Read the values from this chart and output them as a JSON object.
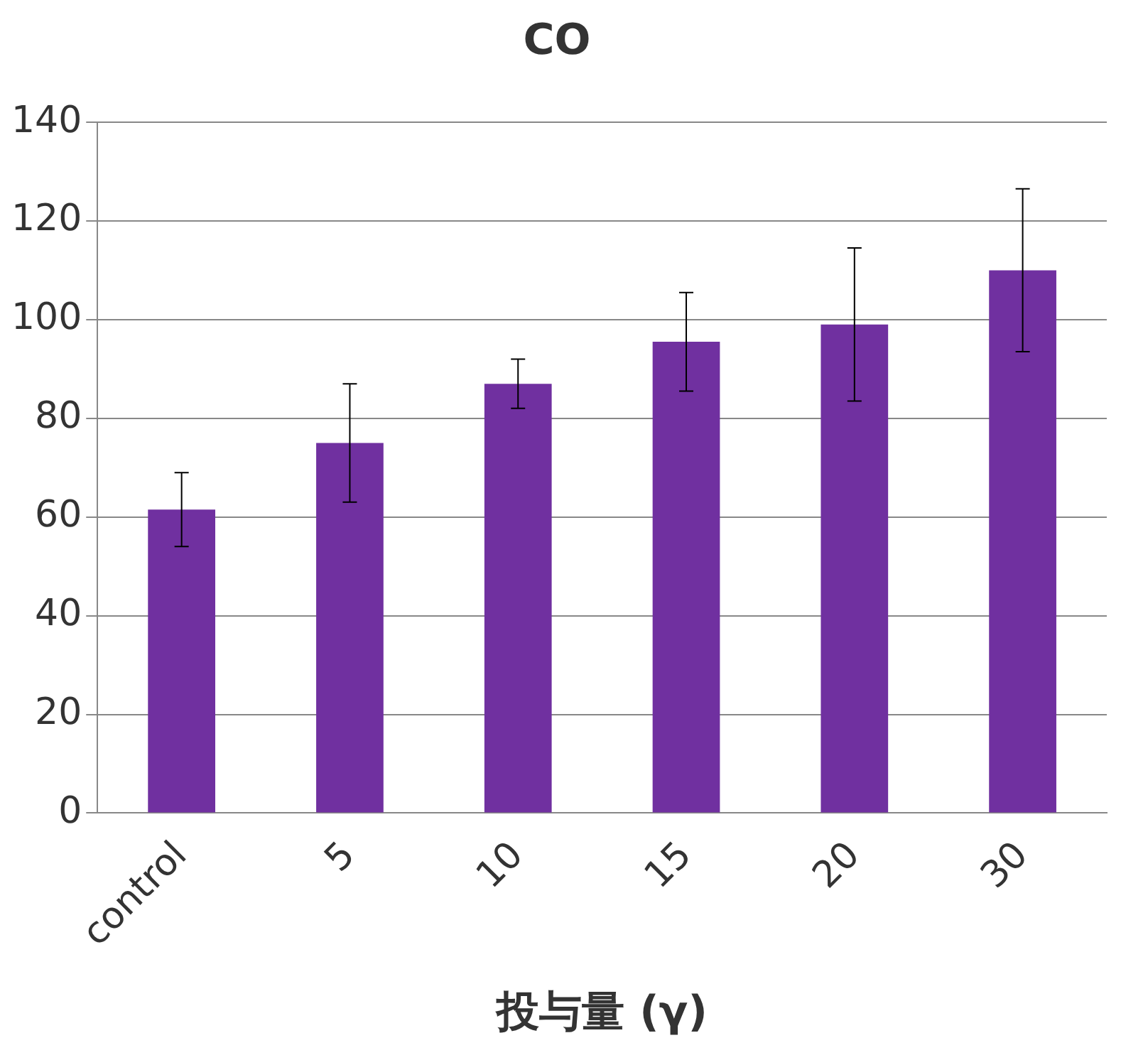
{
  "chart_data": {
    "type": "bar",
    "title": "CO",
    "xlabel": "投与量 (γ)",
    "categories": [
      "control",
      "5",
      "10",
      "15",
      "20",
      "30"
    ],
    "values": [
      61.5,
      75,
      87,
      95.5,
      99,
      110
    ],
    "errors": [
      7.5,
      12,
      5,
      10,
      15.5,
      16.5
    ],
    "color": "#7030a0",
    "ylim": [
      0,
      140
    ],
    "yticks": [
      0,
      20,
      40,
      60,
      80,
      100,
      120,
      140
    ],
    "grid": "y",
    "legend": false
  }
}
